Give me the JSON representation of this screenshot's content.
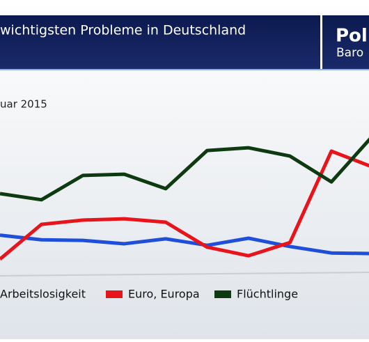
{
  "chart_data": {
    "type": "line",
    "title": "wichtigsten Probleme in Deutschland",
    "subtitle": "uar 2015",
    "logo": [
      "Pol",
      "Baro"
    ],
    "categories": [
      null,
      null,
      null,
      null,
      null,
      null,
      null,
      null,
      null,
      null
    ],
    "series": [
      {
        "name": "Arbeitslosigkeit",
        "color": "#1f4fd8",
        "values": [
          13,
          11.5,
          11.3,
          10.2,
          11.8,
          9.7,
          12,
          9.3,
          7.2,
          7
        ]
      },
      {
        "name": "Euro, Europa",
        "color": "#e8141c",
        "values": [
          5.2,
          16.5,
          17.9,
          18.3,
          17.2,
          9.1,
          6.3,
          10.6,
          40.3,
          35.1
        ]
      },
      {
        "name": "Flüchtlinge",
        "color": "#0e3a12",
        "values": [
          26.5,
          24.5,
          32.4,
          32.8,
          28.1,
          40.5,
          41.4,
          38.7,
          30.3,
          45.3
        ]
      }
    ],
    "ylim": [
      0,
      60
    ]
  }
}
